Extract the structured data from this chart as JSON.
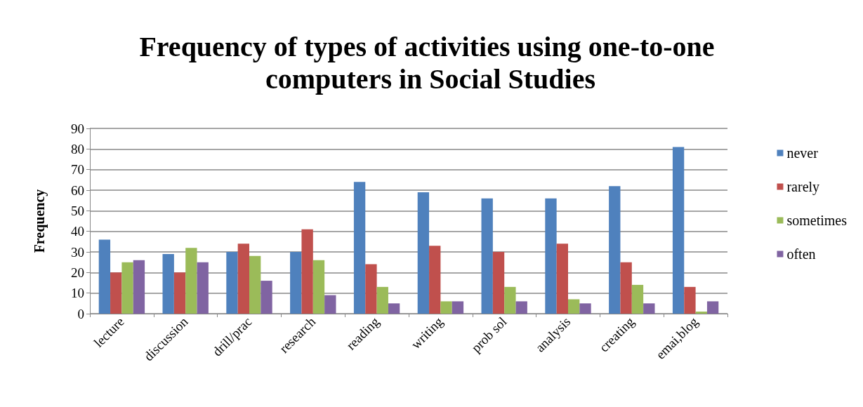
{
  "chart_data": {
    "type": "bar",
    "title": "Frequency of types of activities using one-to-one computers in Social Studies",
    "ylabel": "Frequency",
    "categories": [
      "lecture",
      "discussion",
      "drill/prac",
      "research",
      "reading",
      "writing",
      "prob sol",
      "analysis",
      "creating",
      "emai,blog"
    ],
    "series": [
      {
        "name": "never",
        "color": "#4f81bd",
        "values": [
          36,
          29,
          30,
          30,
          64,
          59,
          56,
          56,
          62,
          81
        ]
      },
      {
        "name": "rarely",
        "color": "#c0504d",
        "values": [
          20,
          20,
          34,
          41,
          24,
          33,
          30,
          34,
          25,
          13
        ]
      },
      {
        "name": "sometimes",
        "color": "#9bbb59",
        "values": [
          25,
          32,
          28,
          26,
          13,
          6,
          13,
          7,
          14,
          1
        ]
      },
      {
        "name": "often",
        "color": "#8064a2",
        "values": [
          26,
          25,
          16,
          9,
          5,
          6,
          6,
          5,
          5,
          6
        ]
      }
    ],
    "ylim": [
      0,
      90
    ],
    "yticks": [
      0,
      10,
      20,
      30,
      40,
      50,
      60,
      70,
      80,
      90
    ],
    "grid": "y",
    "legend": "right"
  }
}
